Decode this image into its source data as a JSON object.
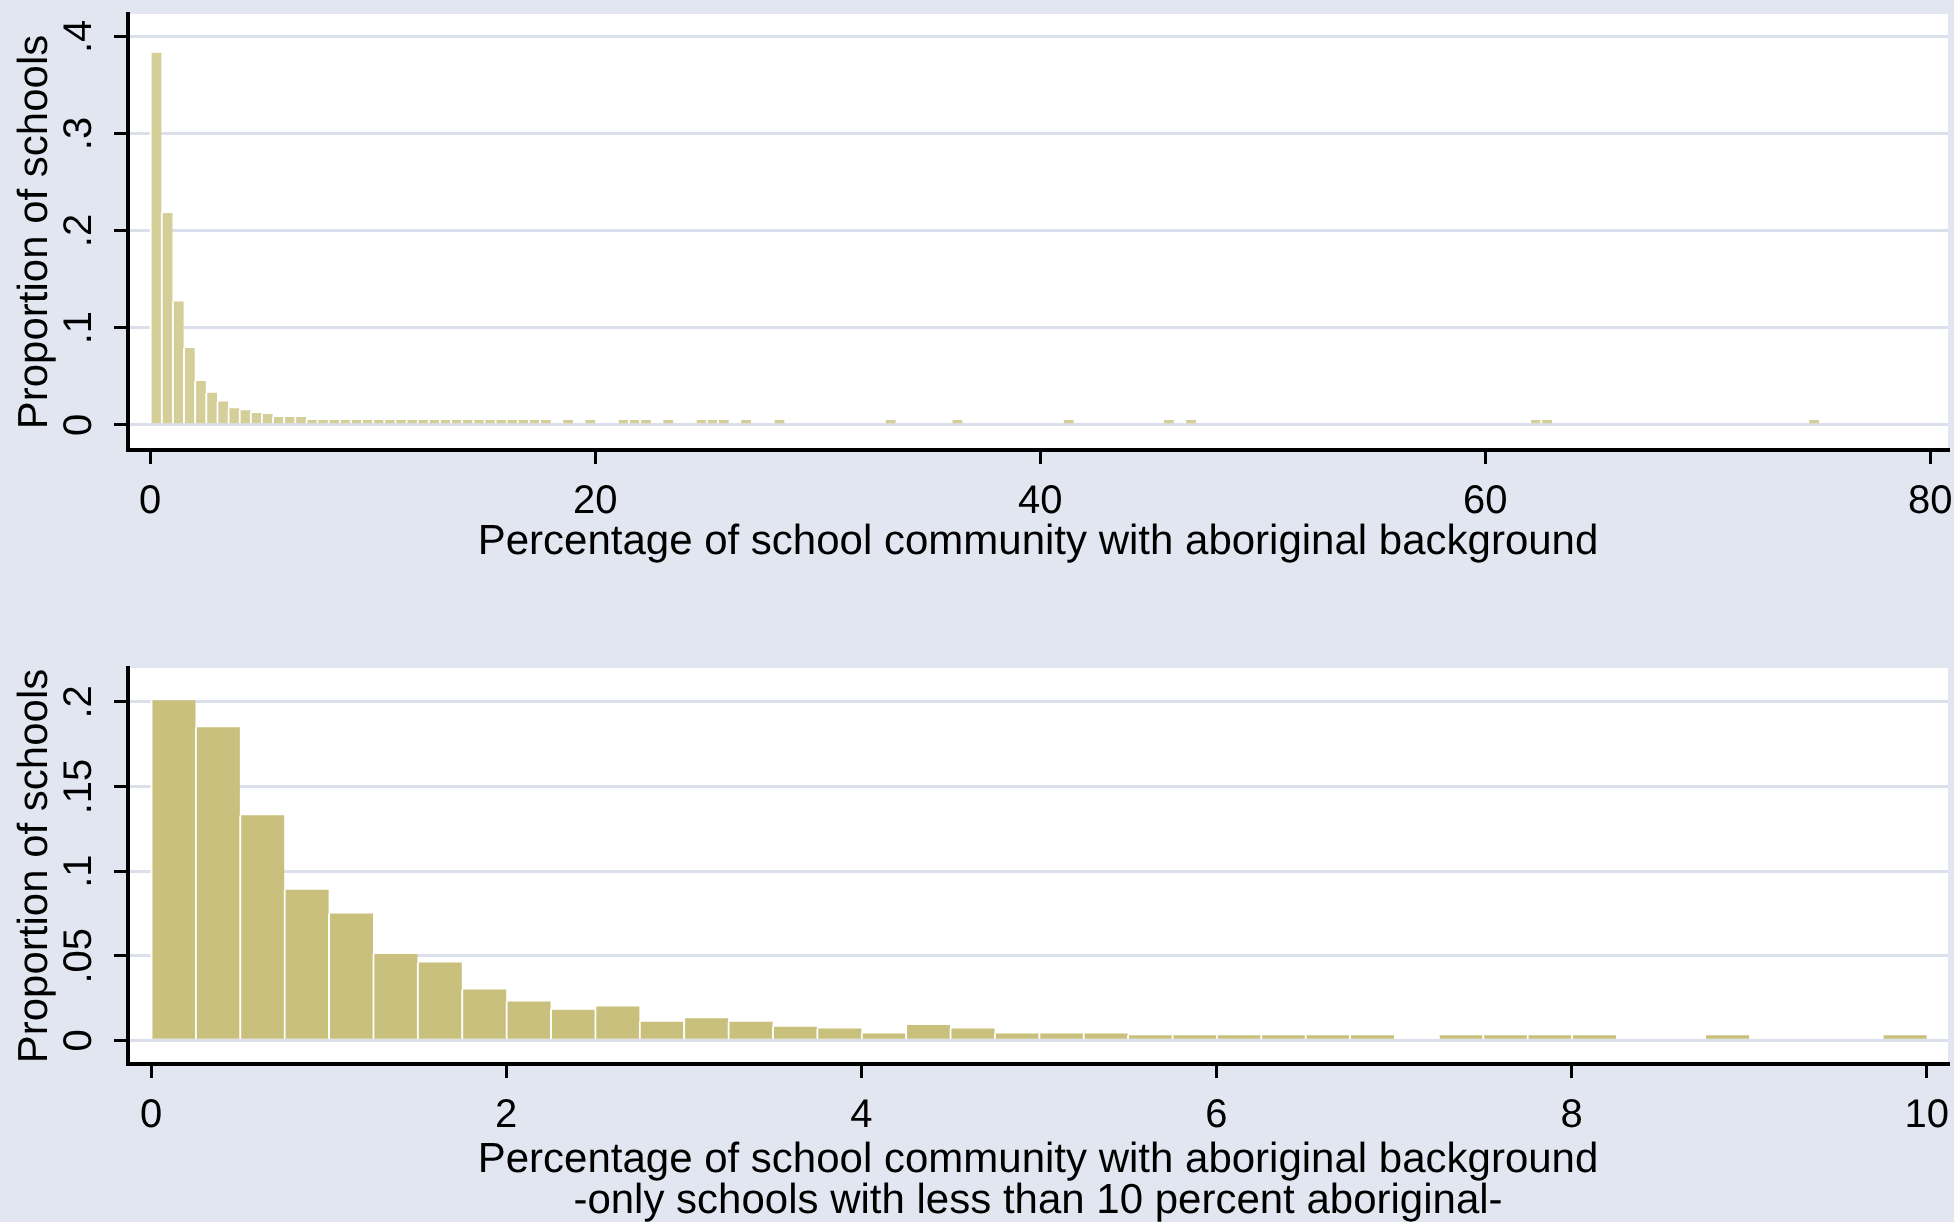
{
  "chart_data": [
    {
      "type": "histogram",
      "xlabel": "Percentage of school community with aboriginal background",
      "ylabel": "Proportion of schools",
      "color": "#d4ce98",
      "grid": "y",
      "bins": [
        0,
        0.5,
        1,
        1.5,
        2,
        2.5,
        3,
        3.5,
        4,
        4.5,
        5,
        5.5,
        6,
        6.5,
        7,
        7.5,
        8,
        8.5,
        9,
        9.5,
        10,
        10.5,
        11,
        11.5,
        12,
        12.5,
        13,
        13.5,
        14,
        14.5,
        15,
        15.5,
        16,
        16.5,
        17,
        17.5,
        18,
        18.5,
        19,
        19.5,
        20,
        20.5,
        21,
        21.5,
        22,
        22.5,
        23,
        23.5,
        24,
        24.5,
        25,
        25.5,
        26,
        26.5,
        27,
        27.5,
        28,
        28.5,
        29,
        29.5,
        30,
        30.5,
        31,
        31.5,
        32,
        32.5,
        33,
        33.5,
        34,
        34.5,
        35,
        35.5,
        36,
        36.5,
        37,
        37.5,
        38,
        38.5,
        39,
        39.5,
        40,
        40.5,
        41,
        41.5,
        42,
        42.5,
        43,
        43.5,
        44,
        44.5,
        45,
        45.5,
        46,
        46.5,
        47,
        47.5,
        48,
        48.5,
        49,
        49.5,
        50,
        50.5,
        51,
        51.5,
        52,
        52.5,
        53,
        53.5,
        54,
        54.5,
        55,
        55.5,
        56,
        56.5,
        57,
        57.5,
        58,
        58.5,
        59,
        59.5,
        60,
        60.5,
        61,
        61.5,
        62,
        62.5,
        63,
        63.5,
        64,
        64.5,
        65,
        65.5,
        66,
        66.5,
        67,
        67.5,
        68,
        68.5,
        69,
        69.5,
        70,
        70.5,
        71,
        71.5,
        72,
        72.5,
        73,
        73.5,
        74,
        74.5,
        75
      ],
      "values": [
        0.383,
        0.218,
        0.127,
        0.079,
        0.045,
        0.033,
        0.024,
        0.017,
        0.015,
        0.012,
        0.011,
        0.008,
        0.008,
        0.008,
        0.005,
        0.005,
        0.005,
        0.005,
        0.005,
        0.005,
        0.005,
        0.005,
        0.005,
        0.005,
        0.005,
        0.005,
        0.005,
        0.005,
        0.005,
        0.005,
        0.005,
        0.005,
        0.005,
        0.005,
        0.005,
        0.005,
        0,
        0.005,
        0,
        0.005,
        0,
        0,
        0.005,
        0.005,
        0.005,
        0,
        0.005,
        0,
        0,
        0.005,
        0.005,
        0.005,
        0,
        0.005,
        0,
        0,
        0.005,
        0,
        0,
        0,
        0,
        0,
        0,
        0,
        0,
        0,
        0.005,
        0,
        0,
        0,
        0,
        0,
        0.005,
        0,
        0,
        0,
        0,
        0,
        0,
        0,
        0,
        0,
        0.005,
        0,
        0,
        0,
        0,
        0,
        0,
        0,
        0,
        0.005,
        0,
        0.005,
        0,
        0,
        0,
        0,
        0,
        0,
        0,
        0,
        0,
        0,
        0,
        0,
        0,
        0,
        0,
        0,
        0,
        0,
        0,
        0,
        0,
        0,
        0,
        0,
        0,
        0,
        0,
        0,
        0,
        0,
        0.005,
        0.005,
        0,
        0,
        0,
        0,
        0,
        0,
        0,
        0,
        0,
        0,
        0,
        0,
        0,
        0,
        0,
        0,
        0,
        0,
        0,
        0,
        0,
        0,
        0,
        0.005
      ],
      "xlim": [
        -1,
        80.8
      ],
      "xticks": [
        0,
        20,
        40,
        60,
        80
      ],
      "ylim": [
        -0.026,
        0.423
      ],
      "yticks": [
        0,
        {
          "value": 0.1,
          "label": ".1"
        },
        {
          "value": 0.2,
          "label": ".2"
        },
        {
          "value": 0.3,
          "label": ".3"
        },
        {
          "value": 0.4,
          "label": ".4"
        }
      ]
    },
    {
      "type": "histogram",
      "xlabel": "Percentage of school community with aboriginal background\n-only schools with less than 10 percent aboriginal-",
      "ylabel": "Proportion of schools",
      "color": "#c9c07d",
      "grid": "y",
      "bins": [
        0,
        0.25,
        0.5,
        0.75,
        1,
        1.25,
        1.5,
        1.75,
        2,
        2.25,
        2.5,
        2.75,
        3,
        3.25,
        3.5,
        3.75,
        4,
        4.25,
        4.5,
        4.75,
        5,
        5.25,
        5.5,
        5.75,
        6,
        6.25,
        6.5,
        6.75,
        7,
        7.25,
        7.5,
        7.75,
        8,
        8.25,
        8.5,
        8.75,
        9,
        9.25,
        9.5,
        9.75,
        10
      ],
      "values": [
        0.201,
        0.185,
        0.133,
        0.089,
        0.075,
        0.051,
        0.046,
        0.03,
        0.023,
        0.018,
        0.02,
        0.011,
        0.013,
        0.011,
        0.008,
        0.007,
        0.004,
        0.009,
        0.007,
        0.004,
        0.004,
        0.004,
        0.003,
        0.003,
        0.003,
        0.003,
        0.003,
        0.003,
        0,
        0.003,
        0.003,
        0.003,
        0.003,
        0,
        0,
        0.003,
        0,
        0,
        0,
        0.003
      ],
      "xlim": [
        -0.13,
        10.12
      ],
      "xticks": [
        0,
        2,
        4,
        6,
        8,
        10
      ],
      "ylim": [
        -0.014,
        0.22
      ],
      "yticks": [
        0,
        {
          "value": 0.05,
          "label": ".05"
        },
        {
          "value": 0.1,
          "label": ".1"
        },
        {
          "value": 0.15,
          "label": ".15"
        },
        {
          "value": 0.2,
          "label": ".2"
        }
      ]
    }
  ]
}
